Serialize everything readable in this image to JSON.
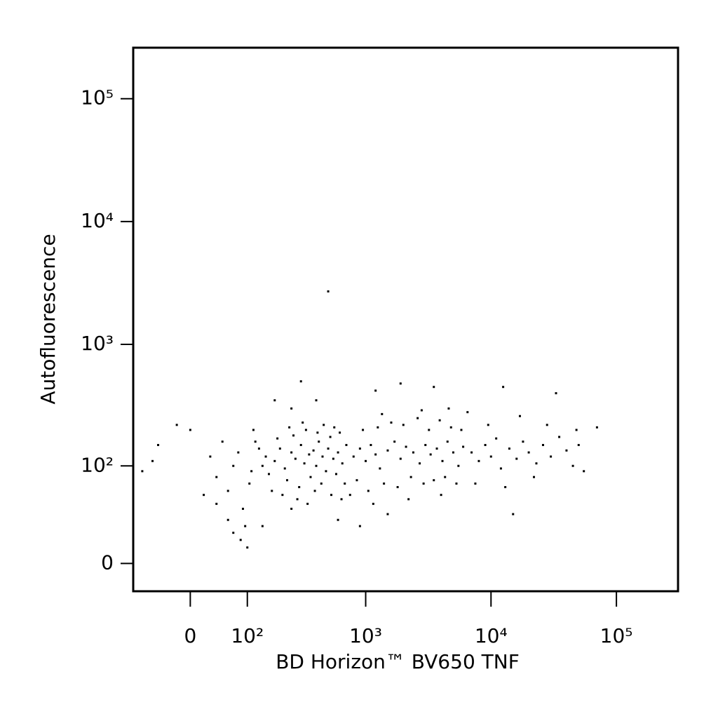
{
  "chart_data": {
    "type": "scatter",
    "x_label": "BD Horizon™ BV650 TNF",
    "y_label": "Autofluorescence",
    "xscale": "biexponential",
    "yscale": "biexponential",
    "xlim": [
      -100,
      310000
    ],
    "ylim": [
      -18,
      260000
    ],
    "xticks": [
      0,
      {
        "value": 100,
        "label": "10²"
      },
      {
        "value": 1000,
        "label": "10³"
      },
      {
        "value": 10000,
        "label": "10⁴"
      },
      {
        "value": 100000,
        "label": "10⁵"
      }
    ],
    "yticks": [
      0,
      {
        "value": 100,
        "label": "10²"
      },
      {
        "value": 1000,
        "label": "10³"
      },
      {
        "value": 10000,
        "label": "10⁴"
      },
      {
        "value": 100000,
        "label": "10⁵"
      }
    ],
    "series": [
      {
        "color": "#000000",
        "x": [
          150,
          180,
          200,
          220,
          250,
          270,
          300,
          320,
          350,
          380,
          400,
          420,
          450,
          480,
          500,
          550,
          600,
          650,
          700,
          160,
          190,
          230,
          260,
          290,
          330,
          360,
          410,
          440,
          520,
          580,
          620,
          680,
          130,
          140,
          170,
          210,
          240,
          280,
          310,
          340,
          390,
          460,
          530,
          560,
          640,
          110,
          120,
          105,
          115,
          800,
          900,
          1000,
          1100,
          1200,
          1300,
          1500,
          1700,
          1900,
          2100,
          2400,
          2700,
          3000,
          3300,
          3700,
          4100,
          4500,
          5000,
          5500,
          6000,
          850,
          950,
          1050,
          1250,
          1400,
          1600,
          1800,
          2000,
          2300,
          2600,
          2900,
          3200,
          3500,
          3900,
          4300,
          4800,
          5300,
          5800,
          750,
          1150,
          1350,
          2200,
          2800,
          4000,
          4600,
          7000,
          8000,
          9000,
          10000,
          11000,
          12000,
          14000,
          16000,
          18000,
          20000,
          23000,
          26000,
          30000,
          35000,
          40000,
          45000,
          50000,
          55000,
          70000,
          7500,
          9500,
          13000,
          17000,
          22000,
          28000,
          33000,
          48000,
          15000,
          6500,
          12500,
          -80,
          -50,
          -60,
          -20,
          0,
          20,
          30,
          40,
          50,
          60,
          70,
          80,
          90,
          95,
          70,
          85,
          100,
          60,
          40,
          300,
          400,
          250,
          180,
          1200,
          1900,
          3500,
          500,
          900,
          600,
          250,
          140,
          1500
        ],
        "y": [
          120,
          110,
          140,
          95,
          130,
          115,
          150,
          105,
          125,
          135,
          100,
          160,
          120,
          90,
          140,
          115,
          130,
          105,
          150,
          85,
          170,
          75,
          180,
          65,
          200,
          80,
          190,
          70,
          175,
          85,
          190,
          70,
          140,
          100,
          60,
          55,
          210,
          50,
          230,
          45,
          60,
          220,
          55,
          210,
          50,
          90,
          160,
          70,
          200,
          120,
          140,
          110,
          150,
          125,
          95,
          135,
          160,
          115,
          145,
          130,
          105,
          150,
          125,
          140,
          110,
          160,
          130,
          100,
          145,
          75,
          200,
          60,
          210,
          70,
          230,
          65,
          220,
          80,
          250,
          70,
          200,
          75,
          240,
          80,
          210,
          70,
          200,
          55,
          45,
          270,
          50,
          290,
          55,
          300,
          130,
          110,
          150,
          120,
          170,
          95,
          140,
          115,
          160,
          130,
          105,
          150,
          120,
          175,
          135,
          100,
          150,
          90,
          210,
          70,
          220,
          65,
          260,
          80,
          220,
          400,
          200,
          35,
          280,
          450,
          90,
          150,
          110,
          220,
          200,
          55,
          120,
          80,
          160,
          60,
          100,
          130,
          40,
          25,
          20,
          15,
          10,
          30,
          45,
          500,
          350,
          300,
          350,
          420,
          480,
          450,
          2700,
          25,
          30,
          40,
          25,
          35
        ]
      }
    ]
  }
}
